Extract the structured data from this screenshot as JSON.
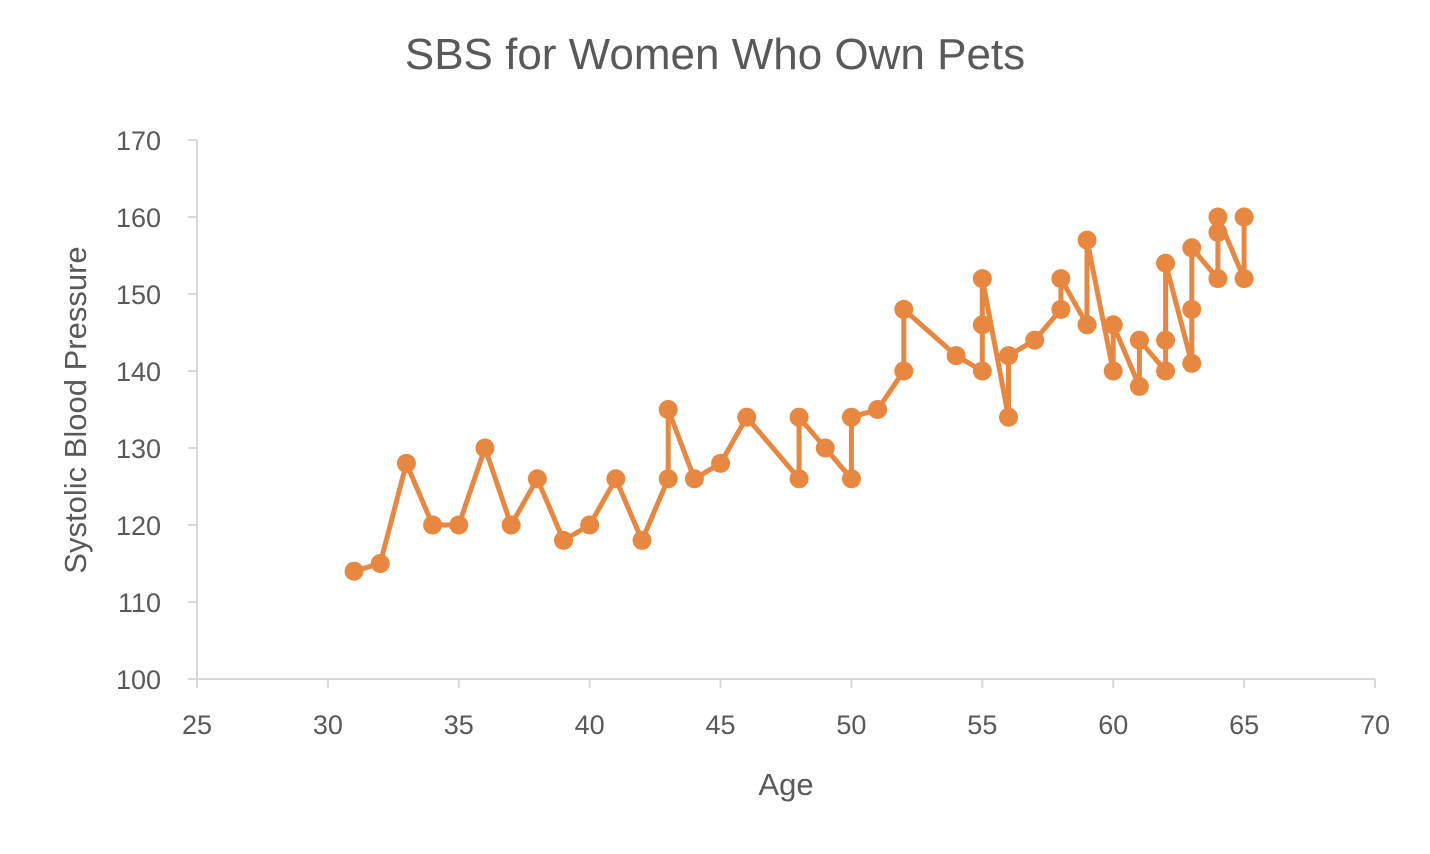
{
  "chart_data": {
    "type": "line",
    "title": "SBS for Women Who Own Pets",
    "xlabel": "Age",
    "ylabel": "Systolic Blood Pressure",
    "xlim": [
      25,
      70
    ],
    "ylim": [
      100,
      170
    ],
    "xticks": [
      25,
      30,
      35,
      40,
      45,
      50,
      55,
      60,
      65,
      70
    ],
    "yticks": [
      100,
      110,
      120,
      130,
      140,
      150,
      160,
      170
    ],
    "grid": false,
    "legend": "none",
    "series": [
      {
        "color": "#E8873F",
        "points": [
          [
            31,
            114
          ],
          [
            32,
            115
          ],
          [
            33,
            128
          ],
          [
            34,
            120
          ],
          [
            35,
            120
          ],
          [
            36,
            130
          ],
          [
            37,
            120
          ],
          [
            38,
            126
          ],
          [
            39,
            118
          ],
          [
            40,
            120
          ],
          [
            41,
            126
          ],
          [
            42,
            118
          ],
          [
            43,
            126
          ],
          [
            43,
            135
          ],
          [
            44,
            126
          ],
          [
            45,
            128
          ],
          [
            46,
            134
          ],
          [
            48,
            126
          ],
          [
            48,
            134
          ],
          [
            49,
            130
          ],
          [
            50,
            126
          ],
          [
            50,
            134
          ],
          [
            51,
            135
          ],
          [
            52,
            140
          ],
          [
            52,
            148
          ],
          [
            54,
            142
          ],
          [
            55,
            140
          ],
          [
            55,
            146
          ],
          [
            55,
            152
          ],
          [
            56,
            134
          ],
          [
            56,
            142
          ],
          [
            57,
            144
          ],
          [
            58,
            148
          ],
          [
            58,
            152
          ],
          [
            59,
            146
          ],
          [
            59,
            157
          ],
          [
            60,
            140
          ],
          [
            60,
            146
          ],
          [
            61,
            138
          ],
          [
            61,
            144
          ],
          [
            62,
            140
          ],
          [
            62,
            144
          ],
          [
            62,
            154
          ],
          [
            63,
            141
          ],
          [
            63,
            148
          ],
          [
            63,
            156
          ],
          [
            64,
            152
          ],
          [
            64,
            158
          ],
          [
            64,
            160
          ],
          [
            65,
            152
          ],
          [
            65,
            160
          ]
        ]
      }
    ]
  }
}
